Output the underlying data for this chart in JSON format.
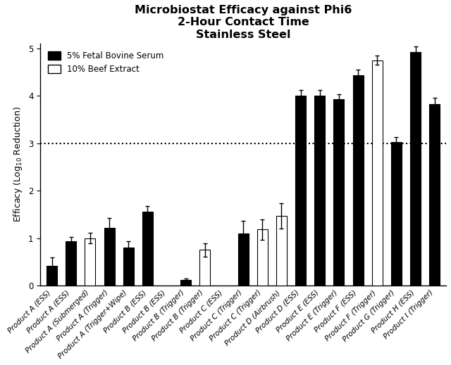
{
  "title": "Microbiostat Efficacy against Phi6\n2-Hour Contact Time\nStainless Steel",
  "ylabel": "Efficacy (Log$_{10}$ Reduction)",
  "ylim": [
    0,
    5.1
  ],
  "yticks": [
    0,
    1,
    2,
    3,
    4,
    5
  ],
  "hline_y": 3.0,
  "tick_labels": [
    "Product A (ESS)",
    "Product A (ESS)",
    "Product A (Submerged)",
    "Product A (Trigger)",
    "Product A (Trigger+Wipe)",
    "Product B (ESS)",
    "Product B (ESS)",
    "Product B (Trigger)",
    "Product B (Trigger)",
    "Product C (ESS)",
    "Product C (Trigger)",
    "Product C (Trigger)",
    "Product D (Airbrush)",
    "Product D (ESS)",
    "Product E (ESS)",
    "Product E (Trigger)",
    "Product F (ESS)",
    "Product F (Trigger)",
    "Product G (Trigger)",
    "Product H (ESS)",
    "Product I (Trigger)"
  ],
  "values": [
    0.42,
    0.93,
    1.0,
    1.21,
    0.8,
    1.55,
    0.0,
    0.12,
    0.75,
    0.0,
    1.1,
    1.18,
    1.47,
    4.01,
    4.01,
    3.93,
    4.43,
    4.75,
    3.03,
    4.93,
    3.82
  ],
  "errors": [
    0.18,
    0.1,
    0.11,
    0.21,
    0.14,
    0.13,
    0.0,
    0.03,
    0.14,
    0.0,
    0.27,
    0.22,
    0.27,
    0.11,
    0.11,
    0.1,
    0.12,
    0.1,
    0.1,
    0.11,
    0.14
  ],
  "bar_colors": [
    "black",
    "black",
    "white",
    "black",
    "black",
    "black",
    "white",
    "black",
    "white",
    "white",
    "black",
    "white",
    "white",
    "black",
    "black",
    "black",
    "black",
    "white",
    "black",
    "black",
    "black"
  ],
  "show_error": [
    true,
    true,
    true,
    true,
    true,
    true,
    false,
    true,
    true,
    false,
    true,
    true,
    true,
    true,
    true,
    true,
    true,
    true,
    true,
    true,
    true
  ],
  "legend_black": "5% Fetal Bovine Serum",
  "legend_white": "10% Beef Extract",
  "bar_width": 0.55,
  "title_fontsize": 11.5,
  "label_fontsize": 9,
  "tick_fontsize": 7.5
}
